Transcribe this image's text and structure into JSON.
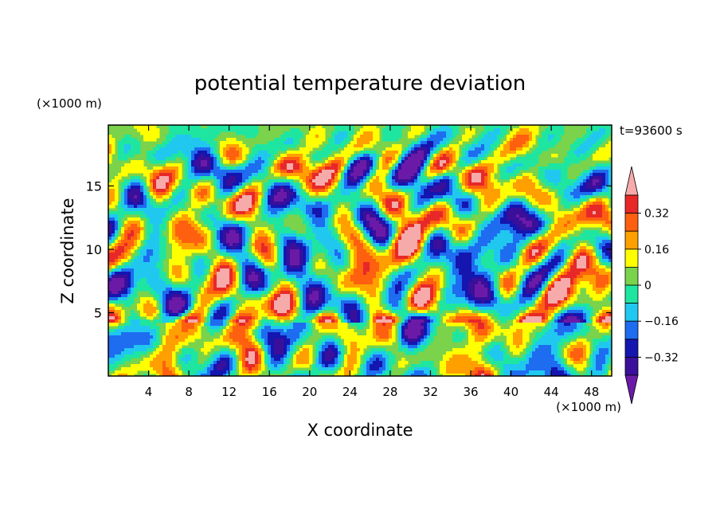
{
  "chart_data": {
    "type": "heatmap",
    "title": "potential temperature deviation",
    "xlabel": "X coordinate",
    "ylabel": "Z coordinate",
    "x_unit": "(×1000 m)",
    "y_unit": "(×1000 m)",
    "time_label": "t=93600 s",
    "xlim": [
      0,
      50
    ],
    "ylim": [
      0,
      19.8
    ],
    "x_ticks": [
      4,
      8,
      12,
      16,
      20,
      24,
      28,
      32,
      36,
      40,
      44,
      48
    ],
    "y_ticks": [
      5,
      10,
      15
    ],
    "colorbar": {
      "levels": [
        -0.4,
        -0.32,
        -0.24,
        -0.16,
        -0.08,
        0,
        0.08,
        0.16,
        0.24,
        0.32,
        0.4
      ],
      "tick_labels": [
        "0.32",
        "0.16",
        "0",
        "−0.16",
        "−0.32"
      ],
      "tick_values": [
        0.32,
        0.16,
        0,
        -0.16,
        -0.32
      ],
      "colors": [
        "#6b1aa8",
        "#3a0f9a",
        "#1515b0",
        "#1e6cf0",
        "#20c8f0",
        "#1ee6a0",
        "#7ad34a",
        "#ffff00",
        "#ffa000",
        "#ff6010",
        "#e82828",
        "#f7aaaa"
      ]
    }
  }
}
